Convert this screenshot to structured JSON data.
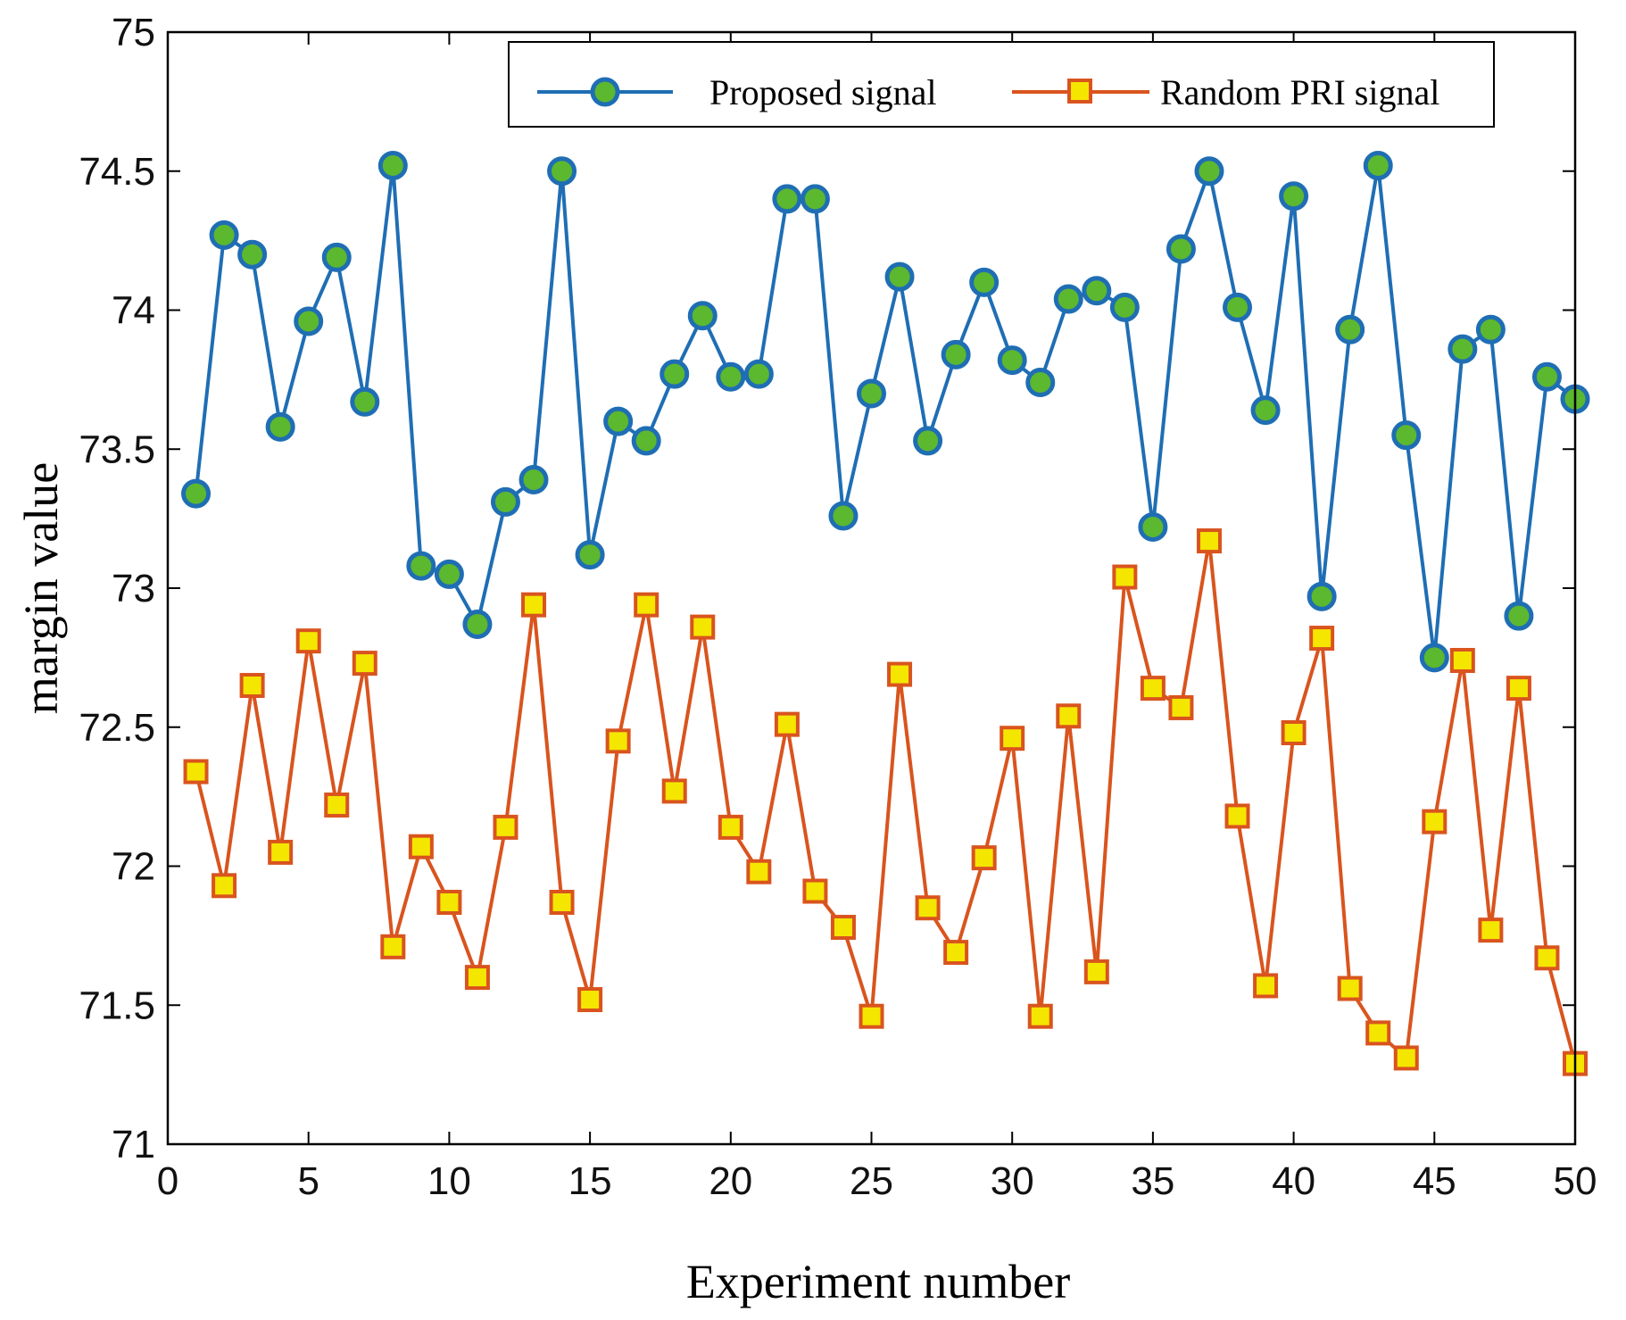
{
  "chart_data": {
    "type": "line",
    "title": "",
    "xlabel": "Experiment number",
    "ylabel": "margin value",
    "xlim": [
      0,
      50
    ],
    "ylim": [
      71,
      75
    ],
    "xticks": [
      0,
      5,
      10,
      15,
      20,
      25,
      30,
      35,
      40,
      45,
      50
    ],
    "xtick_labels": [
      "0",
      "5",
      "10",
      "15",
      "20",
      "25",
      "30",
      "35",
      "40",
      "45",
      "50"
    ],
    "yticks": [
      71,
      71.5,
      72,
      72.5,
      73,
      73.5,
      74,
      74.5,
      75
    ],
    "ytick_labels": [
      "71",
      "71.5",
      "72",
      "72.5",
      "73",
      "73.5",
      "74",
      "74.5",
      "75"
    ],
    "grid": false,
    "legend_position": "top-right",
    "x": [
      1,
      2,
      3,
      4,
      5,
      6,
      7,
      8,
      9,
      10,
      11,
      12,
      13,
      14,
      15,
      16,
      17,
      18,
      19,
      20,
      21,
      22,
      23,
      24,
      25,
      26,
      27,
      28,
      29,
      30,
      31,
      32,
      33,
      34,
      35,
      36,
      37,
      38,
      39,
      40,
      41,
      42,
      43,
      44,
      45,
      46,
      47,
      48,
      49,
      50
    ],
    "series": [
      {
        "name": "Proposed signal",
        "color": "#1f6eb4",
        "marker": "circle",
        "marker_fill": "#5cb82e",
        "values": [
          73.34,
          74.27,
          74.2,
          73.58,
          73.96,
          74.19,
          73.67,
          74.52,
          73.08,
          73.05,
          72.87,
          73.31,
          73.39,
          74.5,
          73.12,
          73.6,
          73.53,
          73.77,
          73.98,
          73.76,
          73.77,
          74.4,
          74.4,
          73.26,
          73.7,
          74.12,
          73.53,
          73.84,
          74.1,
          73.82,
          73.74,
          74.04,
          74.07,
          74.01,
          73.22,
          74.22,
          74.5,
          74.01,
          73.64,
          74.41,
          72.97,
          73.93,
          74.52,
          73.55,
          72.75,
          73.86,
          73.93,
          72.9,
          73.76,
          73.68
        ]
      },
      {
        "name": "Random PRI signal",
        "color": "#d9541e",
        "marker": "square",
        "marker_fill": "#f5e600",
        "values": [
          72.34,
          71.93,
          72.65,
          72.05,
          72.81,
          72.22,
          72.73,
          71.71,
          72.07,
          71.87,
          71.6,
          72.14,
          72.94,
          71.87,
          71.52,
          72.45,
          72.94,
          72.27,
          72.86,
          72.14,
          71.98,
          72.51,
          71.91,
          71.78,
          71.46,
          72.69,
          71.85,
          71.69,
          72.03,
          72.46,
          71.46,
          72.54,
          71.62,
          73.04,
          72.64,
          72.57,
          73.17,
          72.18,
          71.57,
          72.48,
          72.82,
          71.56,
          71.4,
          71.31,
          72.16,
          72.74,
          71.77,
          72.64,
          71.67,
          71.29
        ]
      }
    ]
  }
}
